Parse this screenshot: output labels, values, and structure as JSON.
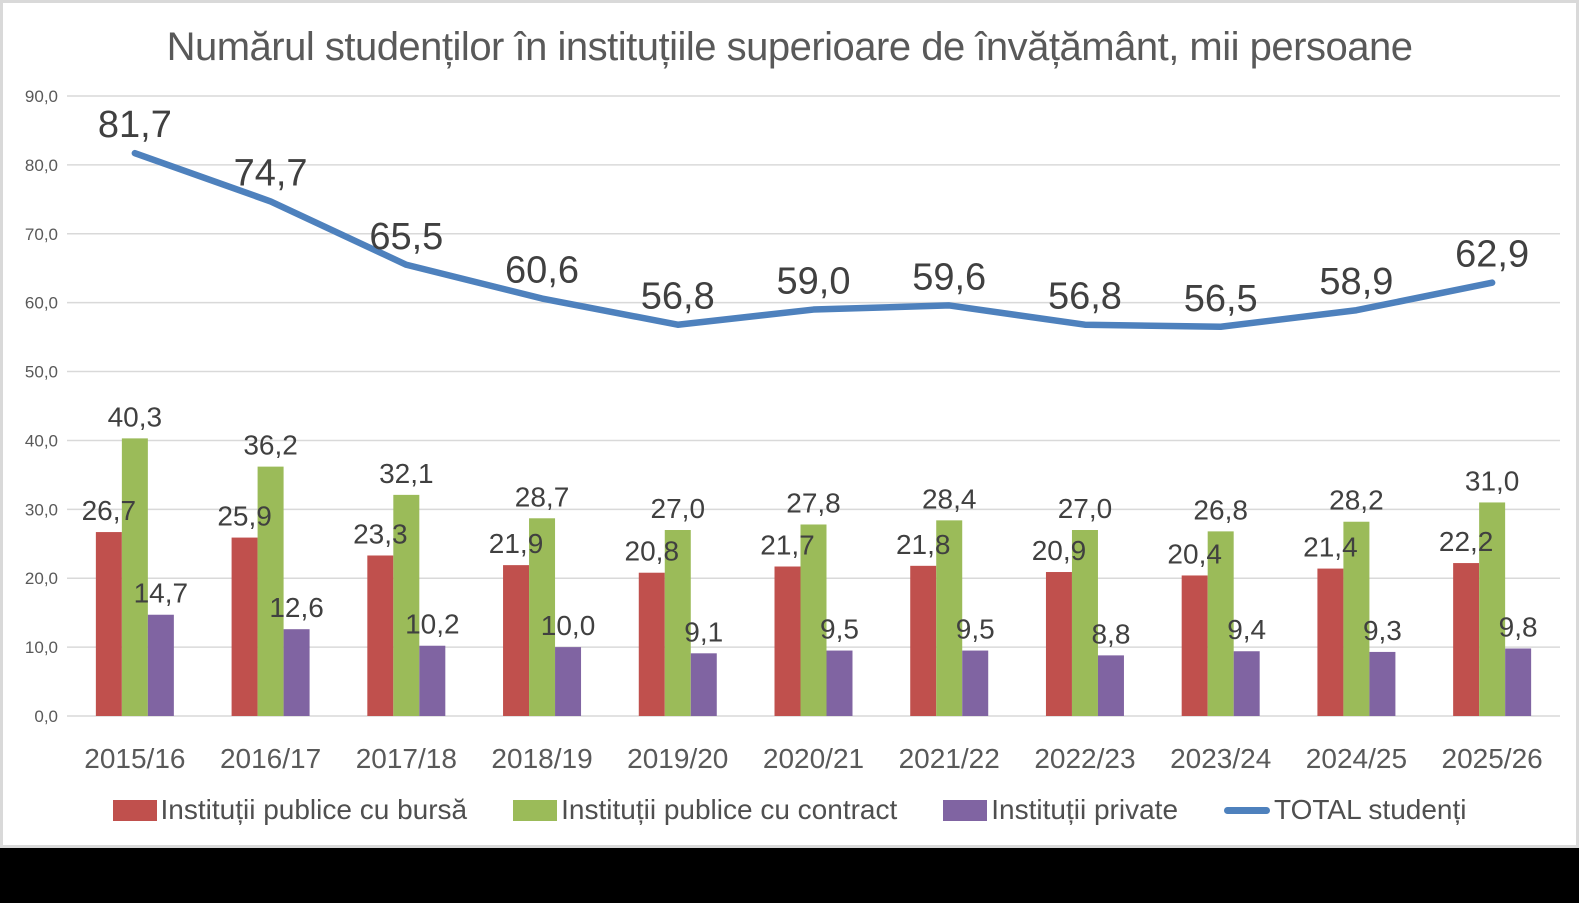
{
  "title": "Numărul studenților în instituțiile superioare de învățământ, mii persoane",
  "chart_data": {
    "type": "bar+line combo",
    "title": "Numărul studenților în instituțiile superioare de învățământ, mii persoane",
    "categories": [
      "2015/16",
      "2016/17",
      "2017/18",
      "2018/19",
      "2019/20",
      "2020/21",
      "2021/22",
      "2022/23",
      "2023/24",
      "2024/25",
      "2025/26"
    ],
    "series": [
      {
        "name": "Instituții publice cu bursă",
        "chart": "bar",
        "color": "#C0504D",
        "values": [
          26.7,
          25.9,
          23.3,
          21.9,
          20.8,
          21.7,
          21.8,
          20.9,
          20.4,
          21.4,
          22.2
        ]
      },
      {
        "name": "Instituții publice cu contract",
        "chart": "bar",
        "color": "#9BBB59",
        "values": [
          40.3,
          36.2,
          32.1,
          28.7,
          27.0,
          27.8,
          28.4,
          27.0,
          26.8,
          28.2,
          31.0
        ]
      },
      {
        "name": "Instituții private",
        "chart": "bar",
        "color": "#8064A2",
        "values": [
          14.7,
          12.6,
          10.2,
          10.0,
          9.1,
          9.5,
          9.5,
          8.8,
          9.4,
          9.3,
          9.8
        ]
      },
      {
        "name": "TOTAL studenți",
        "chart": "line",
        "color": "#4E81BD",
        "values": [
          81.7,
          74.7,
          65.5,
          60.6,
          56.8,
          59.0,
          59.6,
          56.8,
          56.5,
          58.9,
          62.9
        ]
      }
    ],
    "ylim": [
      0,
      90
    ],
    "ytick_values": [
      0,
      10,
      20,
      30,
      40,
      50,
      60,
      70,
      80,
      90
    ],
    "ytick_labels": [
      "0,0",
      "10,0",
      "20,0",
      "30,0",
      "40,0",
      "50,0",
      "60,0",
      "70,0",
      "80,0",
      "90,0"
    ],
    "grid": true,
    "data_labels": true,
    "decimal_separator": ",",
    "legend_position": "bottom",
    "style": {
      "grid_color": "#D9D9D9",
      "axis_text_color": "#595959",
      "data_label_color": "#404040",
      "title_color": "#595959"
    }
  }
}
